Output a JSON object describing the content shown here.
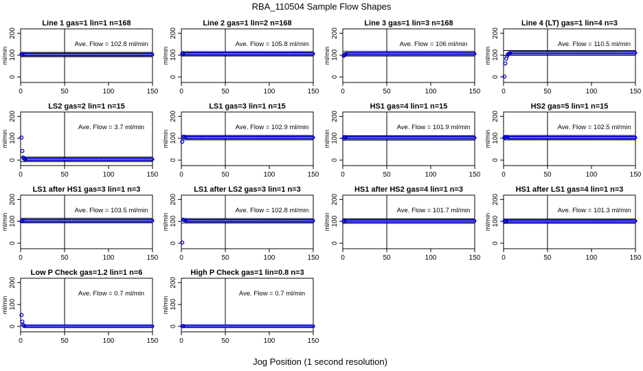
{
  "figure": {
    "title": "RBA_110504  Sample Flow Shapes",
    "xlabel": "Jog Position (1 second resolution)"
  },
  "colors": {
    "points": "#0000cc",
    "lines": "#000000"
  },
  "chart_data": [
    {
      "type": "scatter",
      "title": "Line 1 gas=1 lin=1 n=168",
      "ylabel": "ml/min",
      "annotation": "Ave. Flow = 102.8  ml/min",
      "xlim": [
        0,
        150
      ],
      "ylim": [
        -25,
        220
      ],
      "xticks": [
        0,
        50,
        100,
        150
      ],
      "yticks": [
        0,
        100,
        200
      ],
      "vline": 50,
      "hlines": [
        92,
        113
      ],
      "points": [
        [
          1,
          104
        ],
        [
          2,
          103
        ]
      ],
      "flat": {
        "x0": 3,
        "x1": 150,
        "y": 102.8
      }
    },
    {
      "type": "scatter",
      "title": "Line 2 gas=1 lin=2 n=168",
      "ylabel": "ml/min",
      "annotation": "Ave. Flow = 105.8  ml/min",
      "xlim": [
        0,
        150
      ],
      "ylim": [
        -25,
        220
      ],
      "xticks": [
        0,
        50,
        100,
        150
      ],
      "yticks": [
        0,
        100,
        200
      ],
      "vline": 50,
      "hlines": [
        95,
        116
      ],
      "points": [
        [
          1,
          106
        ],
        [
          2,
          106
        ]
      ],
      "flat": {
        "x0": 3,
        "x1": 150,
        "y": 105.8
      }
    },
    {
      "type": "scatter",
      "title": "Line 3 gas=1 lin=3 n=168",
      "ylabel": "ml/min",
      "annotation": "Ave. Flow = 106  ml/min",
      "xlim": [
        0,
        150
      ],
      "ylim": [
        -25,
        220
      ],
      "xticks": [
        0,
        50,
        100,
        150
      ],
      "yticks": [
        0,
        100,
        200
      ],
      "vline": 50,
      "hlines": [
        95,
        117
      ],
      "points": [
        [
          1,
          97
        ],
        [
          2,
          102
        ],
        [
          3,
          104
        ]
      ],
      "flat": {
        "x0": 4,
        "x1": 150,
        "y": 106
      }
    },
    {
      "type": "scatter",
      "title": "Line 4 (LT) gas=1 lin=4 n=3",
      "ylabel": "ml/min",
      "annotation": "Ave. Flow = 110.5  ml/min",
      "xlim": [
        0,
        150
      ],
      "ylim": [
        -25,
        220
      ],
      "xticks": [
        0,
        50,
        100,
        150
      ],
      "yticks": [
        0,
        100,
        200
      ],
      "vline": 50,
      "hlines": [
        99,
        121
      ],
      "points": [
        [
          1,
          2
        ],
        [
          2,
          62
        ],
        [
          3,
          84
        ],
        [
          4,
          96
        ],
        [
          5,
          103
        ],
        [
          6,
          107
        ],
        [
          7,
          109
        ]
      ],
      "flat": {
        "x0": 8,
        "x1": 150,
        "y": 110.5
      }
    },
    {
      "type": "scatter",
      "title": "LS2 gas=2 lin=1 n=15",
      "ylabel": "ml/min",
      "annotation": "Ave. Flow = 3.7  ml/min",
      "xlim": [
        0,
        150
      ],
      "ylim": [
        -25,
        220
      ],
      "xticks": [
        0,
        50,
        100,
        150
      ],
      "yticks": [
        0,
        100,
        200
      ],
      "vline": 50,
      "hlines": [
        -7,
        14
      ],
      "points": [
        [
          1,
          103
        ],
        [
          2,
          42
        ],
        [
          3,
          12
        ],
        [
          4,
          6
        ],
        [
          5,
          4
        ]
      ],
      "flat": {
        "x0": 6,
        "x1": 150,
        "y": 3.7
      }
    },
    {
      "type": "scatter",
      "title": "LS1 gas=3 lin=1 n=15",
      "ylabel": "ml/min",
      "annotation": "Ave. Flow = 102.9  ml/min",
      "xlim": [
        0,
        150
      ],
      "ylim": [
        -25,
        220
      ],
      "xticks": [
        0,
        50,
        100,
        150
      ],
      "yticks": [
        0,
        100,
        200
      ],
      "vline": 50,
      "hlines": [
        92,
        113
      ],
      "points": [
        [
          1,
          84
        ],
        [
          2,
          104
        ],
        [
          3,
          107
        ],
        [
          4,
          105
        ]
      ],
      "flat": {
        "x0": 5,
        "x1": 150,
        "y": 102.9
      }
    },
    {
      "type": "scatter",
      "title": "HS1 gas=4 lin=1 n=15",
      "ylabel": "ml/min",
      "annotation": "Ave. Flow = 101.9  ml/min",
      "xlim": [
        0,
        150
      ],
      "ylim": [
        -25,
        220
      ],
      "xticks": [
        0,
        50,
        100,
        150
      ],
      "yticks": [
        0,
        100,
        200
      ],
      "vline": 50,
      "hlines": [
        91,
        112
      ],
      "points": [
        [
          1,
          100
        ],
        [
          2,
          105
        ],
        [
          3,
          103
        ]
      ],
      "flat": {
        "x0": 4,
        "x1": 150,
        "y": 101.9
      }
    },
    {
      "type": "scatter",
      "title": "HS2 gas=5 lin=1 n=15",
      "ylabel": "ml/min",
      "annotation": "Ave. Flow = 102.5  ml/min",
      "xlim": [
        0,
        150
      ],
      "ylim": [
        -25,
        220
      ],
      "xticks": [
        0,
        50,
        100,
        150
      ],
      "yticks": [
        0,
        100,
        200
      ],
      "vline": 50,
      "hlines": [
        92,
        113
      ],
      "points": [
        [
          1,
          103
        ],
        [
          2,
          104
        ],
        [
          3,
          106
        ],
        [
          4,
          105
        ]
      ],
      "flat": {
        "x0": 5,
        "x1": 150,
        "y": 102.5
      }
    },
    {
      "type": "scatter",
      "title": "LS1 after HS1 gas=3 lin=1 n=3",
      "ylabel": "ml/min",
      "annotation": "Ave. Flow = 103.5  ml/min",
      "xlim": [
        0,
        150
      ],
      "ylim": [
        -25,
        220
      ],
      "xticks": [
        0,
        50,
        100,
        150
      ],
      "yticks": [
        0,
        100,
        200
      ],
      "vline": 50,
      "hlines": [
        93,
        114
      ],
      "points": [
        [
          1,
          101
        ],
        [
          2,
          103
        ]
      ],
      "flat": {
        "x0": 3,
        "x1": 150,
        "y": 103.5
      }
    },
    {
      "type": "scatter",
      "title": "LS1 after LS2 gas=3 lin=1 n=3",
      "ylabel": "ml/min",
      "annotation": "Ave. Flow = 102.8  ml/min",
      "xlim": [
        0,
        150
      ],
      "ylim": [
        -25,
        220
      ],
      "xticks": [
        0,
        50,
        100,
        150
      ],
      "yticks": [
        0,
        100,
        200
      ],
      "vline": 50,
      "hlines": [
        92,
        113
      ],
      "points": [
        [
          1,
          3
        ],
        [
          2,
          108
        ],
        [
          3,
          106
        ],
        [
          4,
          105
        ]
      ],
      "flat": {
        "x0": 5,
        "x1": 150,
        "y": 102.8
      }
    },
    {
      "type": "scatter",
      "title": "HS1 after HS2 gas=4 lin=1 n=3",
      "ylabel": "ml/min",
      "annotation": "Ave. Flow = 101.7  ml/min",
      "xlim": [
        0,
        150
      ],
      "ylim": [
        -25,
        220
      ],
      "xticks": [
        0,
        50,
        100,
        150
      ],
      "yticks": [
        0,
        100,
        200
      ],
      "vline": 50,
      "hlines": [
        91,
        112
      ],
      "points": [
        [
          1,
          102
        ],
        [
          2,
          102
        ]
      ],
      "flat": {
        "x0": 3,
        "x1": 150,
        "y": 101.7
      }
    },
    {
      "type": "scatter",
      "title": "HS1 after LS1 gas=4 lin=1 n=3",
      "ylabel": "ml/min",
      "annotation": "Ave. Flow = 101.3  ml/min",
      "xlim": [
        0,
        150
      ],
      "ylim": [
        -25,
        220
      ],
      "xticks": [
        0,
        50,
        100,
        150
      ],
      "yticks": [
        0,
        100,
        200
      ],
      "vline": 50,
      "hlines": [
        91,
        111
      ],
      "points": [
        [
          1,
          101
        ],
        [
          2,
          102
        ],
        [
          3,
          101
        ]
      ],
      "flat": {
        "x0": 4,
        "x1": 150,
        "y": 101.3
      }
    },
    {
      "type": "scatter",
      "title": "Low P Check gas=1.2 lin=1 n=6",
      "ylabel": "ml/min",
      "annotation": "Ave. Flow = 0.7  ml/min",
      "xlim": [
        0,
        150
      ],
      "ylim": [
        -25,
        220
      ],
      "xticks": [
        0,
        50,
        100,
        150
      ],
      "yticks": [
        0,
        100,
        200
      ],
      "vline": 50,
      "hlines": [],
      "points": [
        [
          1,
          52
        ],
        [
          2,
          22
        ],
        [
          3,
          6
        ],
        [
          4,
          2
        ]
      ],
      "flat": {
        "x0": 5,
        "x1": 150,
        "y": 0.7
      }
    },
    {
      "type": "scatter",
      "title": "High P Check gas=1 lin=0.8 n=3",
      "ylabel": "ml/min",
      "annotation": "Ave. Flow = 0.7  ml/min",
      "xlim": [
        0,
        150
      ],
      "ylim": [
        -25,
        220
      ],
      "xticks": [
        0,
        50,
        100,
        150
      ],
      "yticks": [
        0,
        100,
        200
      ],
      "vline": 50,
      "hlines": [],
      "points": [
        [
          1,
          1
        ],
        [
          2,
          1
        ]
      ],
      "flat": {
        "x0": 3,
        "x1": 150,
        "y": 0.7
      }
    }
  ]
}
